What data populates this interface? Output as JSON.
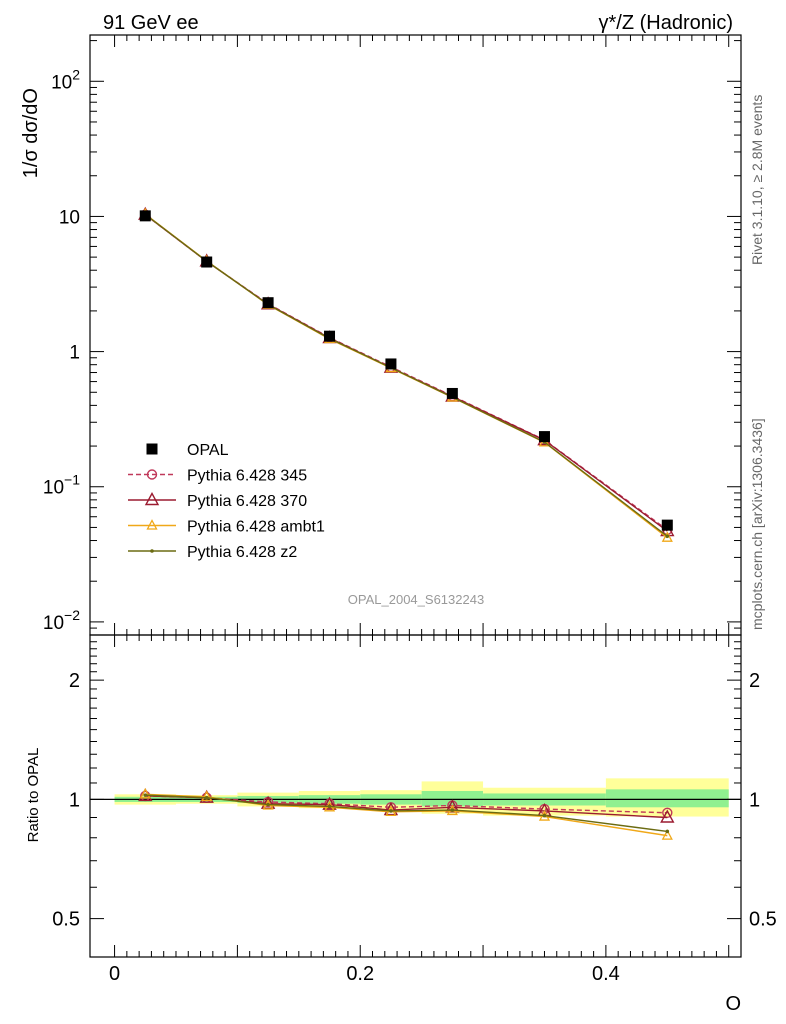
{
  "header": {
    "left_title": "91 GeV ee",
    "right_title": "γ*/Z (Hadronic)"
  },
  "side_text": {
    "rivet": "Rivet 3.1.10, ≥ 2.8M events",
    "mcplots": "mcplots.cern.ch [arXiv:1306.3436]"
  },
  "watermark": "OPAL_2004_S6132243",
  "colors": {
    "opal": "#000000",
    "p345": "#c0395a",
    "p370": "#9b1b30",
    "ambt1": "#f0a818",
    "z2": "#6b6b12",
    "band_inner": "#90f090",
    "band_outer": "#ffff9a"
  },
  "chart_data": [
    {
      "type": "scatter",
      "panel": "main",
      "scale": "log",
      "ylabel": "1/σ dσ/dO",
      "xlim": [
        -0.02,
        0.51
      ],
      "ylim": [
        0.008,
        220
      ],
      "y_tick_labels": [
        "10^-2",
        "10^-1",
        "1",
        "10",
        "10^2"
      ],
      "x": [
        0.025,
        0.075,
        0.125,
        0.175,
        0.225,
        0.275,
        0.35,
        0.45
      ],
      "x_bins": [
        [
          0.0,
          0.05
        ],
        [
          0.05,
          0.1
        ],
        [
          0.1,
          0.15
        ],
        [
          0.15,
          0.2
        ],
        [
          0.2,
          0.25
        ],
        [
          0.25,
          0.3
        ],
        [
          0.3,
          0.4
        ],
        [
          0.4,
          0.5
        ]
      ],
      "legend_position": "lower-left",
      "series": [
        {
          "name": "OPAL",
          "key": "opal",
          "marker": "square",
          "values": [
            10.1,
            4.6,
            2.3,
            1.3,
            0.81,
            0.49,
            0.235,
            0.052
          ]
        },
        {
          "name": "Pythia 6.428 345",
          "key": "p345",
          "marker": "circle",
          "dashed": true,
          "values": [
            10.3,
            4.65,
            2.26,
            1.27,
            0.77,
            0.47,
            0.222,
            0.048
          ]
        },
        {
          "name": "Pythia 6.428 370",
          "key": "p370",
          "marker": "triangle",
          "values": [
            10.3,
            4.65,
            2.24,
            1.26,
            0.76,
            0.465,
            0.221,
            0.047
          ]
        },
        {
          "name": "Pythia 6.428 ambt1",
          "key": "ambt1",
          "marker": "small-triangle",
          "values": [
            10.4,
            4.68,
            2.22,
            1.24,
            0.755,
            0.458,
            0.213,
            0.042
          ]
        },
        {
          "name": "Pythia 6.428 z2",
          "key": "z2",
          "marker": "dot",
          "values": [
            10.35,
            4.66,
            2.23,
            1.25,
            0.76,
            0.46,
            0.214,
            0.043
          ]
        }
      ]
    },
    {
      "type": "line",
      "panel": "ratio",
      "scale": "log",
      "ylabel": "Ratio to OPAL",
      "xlabel": "O",
      "xlim": [
        -0.02,
        0.51
      ],
      "ylim": [
        0.4,
        2.6
      ],
      "x_tick_labels": [
        "0",
        "0.2",
        "0.4"
      ],
      "y_tick_labels": [
        "0.5",
        "1",
        "2"
      ],
      "x": [
        0.025,
        0.075,
        0.125,
        0.175,
        0.225,
        0.275,
        0.35,
        0.45
      ],
      "bands": [
        {
          "range": [
            0.0,
            0.05
          ],
          "inner": [
            0.985,
            1.015
          ],
          "outer": [
            0.97,
            1.03
          ]
        },
        {
          "range": [
            0.05,
            0.1
          ],
          "inner": [
            0.985,
            1.015
          ],
          "outer": [
            0.975,
            1.025
          ]
        },
        {
          "range": [
            0.1,
            0.15
          ],
          "inner": [
            0.98,
            1.02
          ],
          "outer": [
            0.96,
            1.04
          ]
        },
        {
          "range": [
            0.15,
            0.2
          ],
          "inner": [
            0.975,
            1.025
          ],
          "outer": [
            0.95,
            1.05
          ]
        },
        {
          "range": [
            0.2,
            0.25
          ],
          "inner": [
            0.97,
            1.03
          ],
          "outer": [
            0.945,
            1.055
          ]
        },
        {
          "range": [
            0.25,
            0.3
          ],
          "inner": [
            0.96,
            1.05
          ],
          "outer": [
            0.92,
            1.11
          ]
        },
        {
          "range": [
            0.3,
            0.4
          ],
          "inner": [
            0.965,
            1.035
          ],
          "outer": [
            0.91,
            1.07
          ]
        },
        {
          "range": [
            0.4,
            0.5
          ],
          "inner": [
            0.955,
            1.06
          ],
          "outer": [
            0.905,
            1.13
          ]
        }
      ],
      "series": [
        {
          "name": "Pythia 6.428 345",
          "key": "p345",
          "marker": "circle",
          "dashed": true,
          "values": [
            1.02,
            1.01,
            0.985,
            0.975,
            0.955,
            0.965,
            0.945,
            0.925
          ]
        },
        {
          "name": "Pythia 6.428 370",
          "key": "p370",
          "marker": "triangle",
          "values": [
            1.02,
            1.01,
            0.975,
            0.97,
            0.94,
            0.955,
            0.935,
            0.9
          ]
        },
        {
          "name": "Pythia 6.428 ambt1",
          "key": "ambt1",
          "marker": "small-triangle",
          "values": [
            1.03,
            1.015,
            0.965,
            0.955,
            0.93,
            0.935,
            0.905,
            0.81
          ]
        },
        {
          "name": "Pythia 6.428 z2",
          "key": "z2",
          "marker": "dot",
          "values": [
            1.025,
            1.01,
            0.97,
            0.96,
            0.935,
            0.94,
            0.91,
            0.83
          ]
        }
      ]
    }
  ]
}
